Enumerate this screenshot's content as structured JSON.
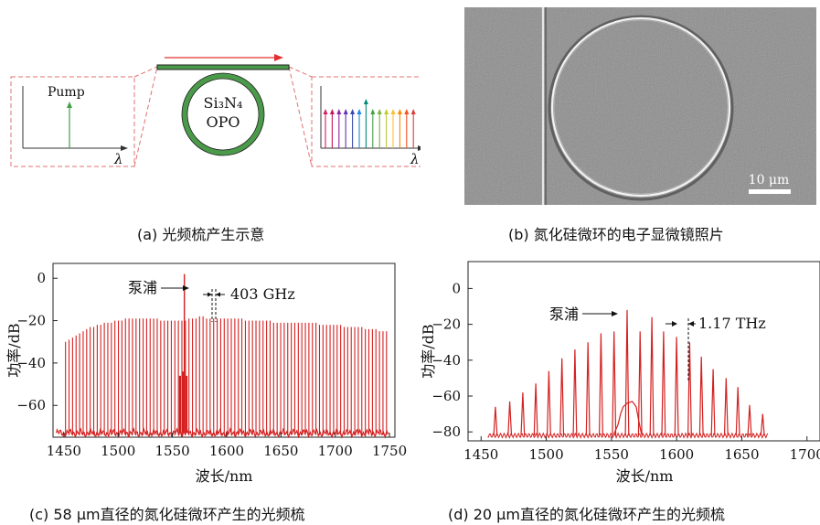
{
  "panel_a": {
    "caption": "(a) 光频梳产生示意",
    "pump_label": "Pump",
    "ring_line1": "Si₃N₄",
    "ring_line2": "OPO",
    "lambda_left": "λ",
    "lambda_right": "λ",
    "ring_color": "#4a9a4a",
    "arrow_color": "#e03030",
    "comb_colors": [
      "#d81b60",
      "#c2185b",
      "#8e24aa",
      "#5e35b1",
      "#3949ab",
      "#1e88e5",
      "#00897b",
      "#43a047",
      "#7cb342",
      "#c0ca33",
      "#fbc02d",
      "#fb8c00",
      "#f4511e",
      "#e53935"
    ]
  },
  "panel_b": {
    "caption": "(b) 氮化硅微环的电子显微镜照片",
    "scale_bar_label": "10 μm"
  },
  "panel_c": {
    "caption": "(c) 58 μm直径的氮化硅微环产生的光频梳",
    "pump_annotation": "泵浦",
    "spacing_annotation": "403 GHz"
  },
  "panel_d": {
    "caption": "(d) 20 μm直径的氮化硅微环产生的光频梳",
    "pump_annotation": "泵浦",
    "spacing_annotation": "1.17 THz"
  },
  "chart_data": [
    {
      "id": "c",
      "type": "line",
      "xlabel": "波长/nm",
      "ylabel": "功率/dB",
      "xlim": [
        1440,
        1755
      ],
      "ylim": [
        -75,
        7
      ],
      "xticks": [
        1450,
        1500,
        1550,
        1600,
        1650,
        1700,
        1750
      ],
      "yticks": [
        0,
        -20,
        -40,
        -60
      ],
      "color": "#d42020",
      "floor_db": -73,
      "pump": {
        "x": 1561,
        "y": 2
      },
      "lines": {
        "start_nm": 1451.5,
        "spacing_nm": 3.25,
        "count": 92,
        "peaks_db": [
          -30,
          -29,
          -28,
          -27,
          -26,
          -25,
          -24,
          -23,
          -23,
          -22,
          -22,
          -21,
          -21,
          -21,
          -20,
          -20,
          -20,
          -19,
          -19,
          -19,
          -19,
          -19,
          -19,
          -19,
          -19,
          -19,
          -19,
          -20,
          -20,
          -20,
          -20,
          -20,
          -20,
          -20,
          -20,
          -19,
          -19,
          -19,
          -18,
          -18,
          -19,
          -19,
          -19,
          -19,
          -19,
          -19,
          -19,
          -19,
          -19,
          -19,
          -19,
          -20,
          -20,
          -20,
          -20,
          -20,
          -20,
          -20,
          -20,
          -21,
          -21,
          -21,
          -21,
          -21,
          -21,
          -21,
          -21,
          -21,
          -21,
          -21,
          -21,
          -21,
          -22,
          -22,
          -22,
          -22,
          -22,
          -22,
          -22,
          -23,
          -23,
          -23,
          -23,
          -23,
          -23,
          -24,
          -24,
          -24,
          -24,
          -25,
          -25,
          -25
        ]
      },
      "features": [
        {
          "x": 1557,
          "y": -46
        },
        {
          "x": 1559.5,
          "y": -44
        },
        {
          "x": 1563,
          "y": -46
        }
      ]
    },
    {
      "id": "d",
      "type": "line",
      "xlabel": "波长/nm",
      "ylabel": "功率/dB",
      "xlim": [
        1440,
        1710
      ],
      "ylim": [
        -85,
        15
      ],
      "xticks": [
        1450,
        1500,
        1550,
        1600,
        1650,
        1700
      ],
      "yticks": [
        0,
        -20,
        -40,
        -60,
        -80
      ],
      "color": "#d42020",
      "floor_db": -82,
      "pump": {
        "x": 1562,
        "y": -12
      },
      "lines": [
        {
          "x": 1461,
          "y": -66
        },
        {
          "x": 1472,
          "y": -63
        },
        {
          "x": 1482,
          "y": -58
        },
        {
          "x": 1492,
          "y": -53
        },
        {
          "x": 1502,
          "y": -46
        },
        {
          "x": 1512,
          "y": -39
        },
        {
          "x": 1522,
          "y": -34
        },
        {
          "x": 1532,
          "y": -30
        },
        {
          "x": 1542,
          "y": -25
        },
        {
          "x": 1552,
          "y": -24
        },
        {
          "x": 1562,
          "y": -12
        },
        {
          "x": 1572,
          "y": -24
        },
        {
          "x": 1581,
          "y": -16
        },
        {
          "x": 1590,
          "y": -24
        },
        {
          "x": 1600,
          "y": -27
        },
        {
          "x": 1610,
          "y": -30
        },
        {
          "x": 1619,
          "y": -38
        },
        {
          "x": 1628,
          "y": -45
        },
        {
          "x": 1638,
          "y": -50
        },
        {
          "x": 1647,
          "y": -55
        },
        {
          "x": 1656,
          "y": -65
        },
        {
          "x": 1666,
          "y": -70
        }
      ],
      "hump": [
        {
          "x": 1552,
          "y": -81
        },
        {
          "x": 1555,
          "y": -76
        },
        {
          "x": 1557,
          "y": -70
        },
        {
          "x": 1559,
          "y": -66
        },
        {
          "x": 1562,
          "y": -64
        },
        {
          "x": 1566,
          "y": -63
        },
        {
          "x": 1569,
          "y": -66
        },
        {
          "x": 1571,
          "y": -74
        },
        {
          "x": 1573,
          "y": -81
        }
      ]
    }
  ]
}
